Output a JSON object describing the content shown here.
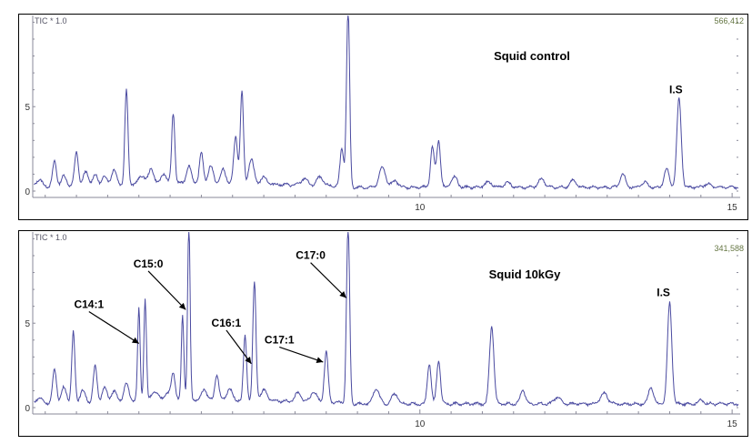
{
  "chart_data": [
    {
      "type": "line",
      "tic_label": "TIC * 1.0",
      "scale_label": "566,412",
      "title": "Squid  control",
      "xlim": [
        3.8,
        15.1
      ],
      "ylim": [
        0,
        10.4
      ],
      "x_ticks": [
        {
          "x": 10,
          "label": "10"
        },
        {
          "x": 15,
          "label": "15"
        }
      ],
      "y_ticks": [
        {
          "y": 0,
          "label": "0"
        },
        {
          "y": 5,
          "label": "5"
        }
      ],
      "line_color": "#4a4aa0",
      "baseline": 0.22,
      "peaks": [
        [
          3.9,
          0.4,
          0.05
        ],
        [
          4.15,
          1.5,
          0.03
        ],
        [
          4.3,
          0.6,
          0.04
        ],
        [
          4.5,
          2.0,
          0.03
        ],
        [
          4.65,
          0.8,
          0.04
        ],
        [
          4.8,
          0.6,
          0.04
        ],
        [
          4.95,
          0.5,
          0.04
        ],
        [
          5.1,
          0.9,
          0.04
        ],
        [
          5.3,
          5.6,
          0.025
        ],
        [
          5.55,
          0.5,
          0.05
        ],
        [
          5.7,
          0.9,
          0.04
        ],
        [
          5.9,
          0.6,
          0.04
        ],
        [
          6.05,
          4.2,
          0.025
        ],
        [
          6.3,
          1.0,
          0.04
        ],
        [
          6.5,
          1.8,
          0.03
        ],
        [
          6.65,
          1.0,
          0.04
        ],
        [
          6.85,
          0.8,
          0.04
        ],
        [
          7.05,
          2.8,
          0.03
        ],
        [
          7.15,
          5.5,
          0.025
        ],
        [
          7.3,
          1.5,
          0.04
        ],
        [
          7.5,
          0.4,
          0.05
        ],
        [
          8.15,
          0.4,
          0.05
        ],
        [
          8.4,
          0.5,
          0.05
        ],
        [
          8.75,
          2.2,
          0.03
        ],
        [
          8.85,
          10.5,
          0.025
        ],
        [
          9.4,
          1.2,
          0.05
        ],
        [
          9.6,
          0.4,
          0.05
        ],
        [
          10.2,
          2.4,
          0.03
        ],
        [
          10.3,
          2.8,
          0.03
        ],
        [
          10.55,
          0.6,
          0.05
        ],
        [
          11.1,
          0.3,
          0.06
        ],
        [
          11.4,
          0.3,
          0.05
        ],
        [
          11.95,
          0.5,
          0.05
        ],
        [
          12.45,
          0.4,
          0.05
        ],
        [
          13.25,
          0.8,
          0.04
        ],
        [
          13.6,
          0.3,
          0.05
        ],
        [
          13.95,
          1.1,
          0.04
        ],
        [
          14.15,
          5.3,
          0.035
        ],
        [
          14.6,
          0.2,
          0.05
        ]
      ],
      "annotations": [
        {
          "text": "I.S",
          "x": 14.1,
          "y": 5.8,
          "arrow_to": null
        }
      ]
    },
    {
      "type": "line",
      "tic_label": "TIC * 1.0",
      "scale_label": "341,588",
      "title": "Squid  10kGy",
      "xlim": [
        3.8,
        15.1
      ],
      "ylim": [
        0,
        10.4
      ],
      "x_ticks": [
        {
          "x": 10,
          "label": "10"
        },
        {
          "x": 15,
          "label": "15"
        }
      ],
      "y_ticks": [
        {
          "y": 0,
          "label": "0"
        },
        {
          "y": 5,
          "label": "5"
        }
      ],
      "line_color": "#4a4aa0",
      "baseline": 0.22,
      "peaks": [
        [
          3.9,
          0.3,
          0.05
        ],
        [
          4.15,
          2.0,
          0.03
        ],
        [
          4.3,
          0.9,
          0.04
        ],
        [
          4.45,
          4.2,
          0.025
        ],
        [
          4.6,
          0.7,
          0.04
        ],
        [
          4.8,
          2.1,
          0.03
        ],
        [
          4.95,
          0.8,
          0.04
        ],
        [
          5.1,
          0.6,
          0.04
        ],
        [
          5.3,
          1.0,
          0.04
        ],
        [
          5.5,
          5.5,
          0.02
        ],
        [
          5.6,
          6.0,
          0.02
        ],
        [
          5.75,
          0.5,
          0.05
        ],
        [
          5.95,
          0.4,
          0.05
        ],
        [
          6.05,
          1.6,
          0.03
        ],
        [
          6.2,
          5.0,
          0.02
        ],
        [
          6.3,
          10.5,
          0.02
        ],
        [
          6.55,
          0.6,
          0.04
        ],
        [
          6.75,
          1.5,
          0.03
        ],
        [
          6.95,
          0.7,
          0.04
        ],
        [
          7.2,
          3.8,
          0.025
        ],
        [
          7.35,
          7.0,
          0.025
        ],
        [
          7.5,
          0.6,
          0.05
        ],
        [
          8.05,
          0.5,
          0.05
        ],
        [
          8.3,
          0.6,
          0.05
        ],
        [
          8.5,
          3.0,
          0.03
        ],
        [
          8.85,
          10.5,
          0.025
        ],
        [
          9.3,
          0.9,
          0.05
        ],
        [
          9.6,
          0.6,
          0.05
        ],
        [
          10.15,
          2.4,
          0.03
        ],
        [
          10.3,
          2.6,
          0.03
        ],
        [
          11.15,
          4.6,
          0.035
        ],
        [
          11.65,
          0.8,
          0.04
        ],
        [
          12.2,
          0.4,
          0.05
        ],
        [
          12.95,
          0.6,
          0.06
        ],
        [
          13.7,
          1.0,
          0.04
        ],
        [
          14.0,
          6.0,
          0.035
        ],
        [
          14.5,
          0.2,
          0.05
        ]
      ],
      "annotations": [
        {
          "text": "C14:1",
          "x": 4.7,
          "y": 5.9,
          "arrow_to": [
            5.5,
            3.8
          ]
        },
        {
          "text": "C15:0",
          "x": 5.65,
          "y": 8.3,
          "arrow_to": [
            6.25,
            5.8
          ]
        },
        {
          "text": "C16:1",
          "x": 6.9,
          "y": 4.8,
          "arrow_to": [
            7.3,
            2.6
          ]
        },
        {
          "text": "C17:1",
          "x": 7.75,
          "y": 3.8,
          "arrow_to": [
            8.45,
            2.7
          ]
        },
        {
          "text": "C17:0",
          "x": 8.25,
          "y": 8.8,
          "arrow_to": [
            8.82,
            6.5
          ]
        },
        {
          "text": "I.S",
          "x": 13.9,
          "y": 6.6,
          "arrow_to": null
        }
      ]
    }
  ]
}
